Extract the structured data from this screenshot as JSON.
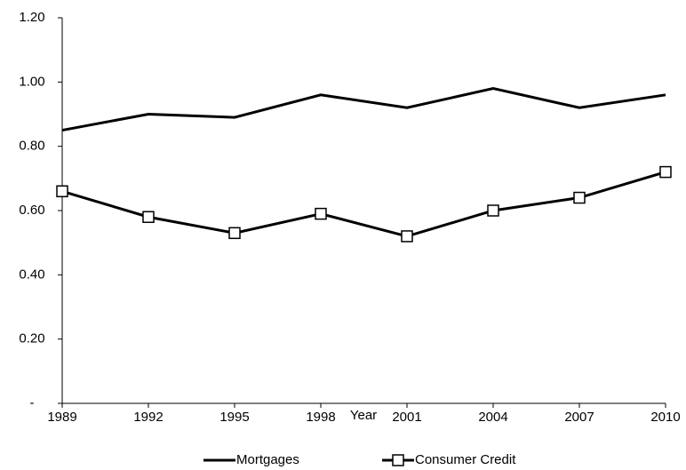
{
  "chart_data": {
    "type": "line",
    "x_label": "Year",
    "x": [
      1989,
      1992,
      1995,
      1998,
      2001,
      2004,
      2007,
      2010
    ],
    "xlim": [
      1989,
      2010
    ],
    "xticks": [
      1989,
      1992,
      1995,
      1998,
      2001,
      2004,
      2007,
      2010
    ],
    "ylim": [
      0,
      1.2
    ],
    "yticks": [
      {
        "value": 0,
        "label": "-"
      },
      {
        "value": 0.2,
        "label": "0.20"
      },
      {
        "value": 0.4,
        "label": "0.40"
      },
      {
        "value": 0.6,
        "label": "0.60"
      },
      {
        "value": 0.8,
        "label": "0.80"
      },
      {
        "value": 1.0,
        "label": "1.00"
      },
      {
        "value": 1.2,
        "label": "1.20"
      }
    ],
    "grid": false,
    "legend": "bottom",
    "series": [
      {
        "name": "Mortgages",
        "color": "#000000",
        "marker": "none",
        "values": [
          0.85,
          0.9,
          0.89,
          0.96,
          0.92,
          0.98,
          0.92,
          0.96
        ]
      },
      {
        "name": "Consumer Credit",
        "color": "#000000",
        "marker": "square",
        "values": [
          0.66,
          0.58,
          0.53,
          0.59,
          0.52,
          0.6,
          0.64,
          0.72
        ]
      }
    ]
  }
}
